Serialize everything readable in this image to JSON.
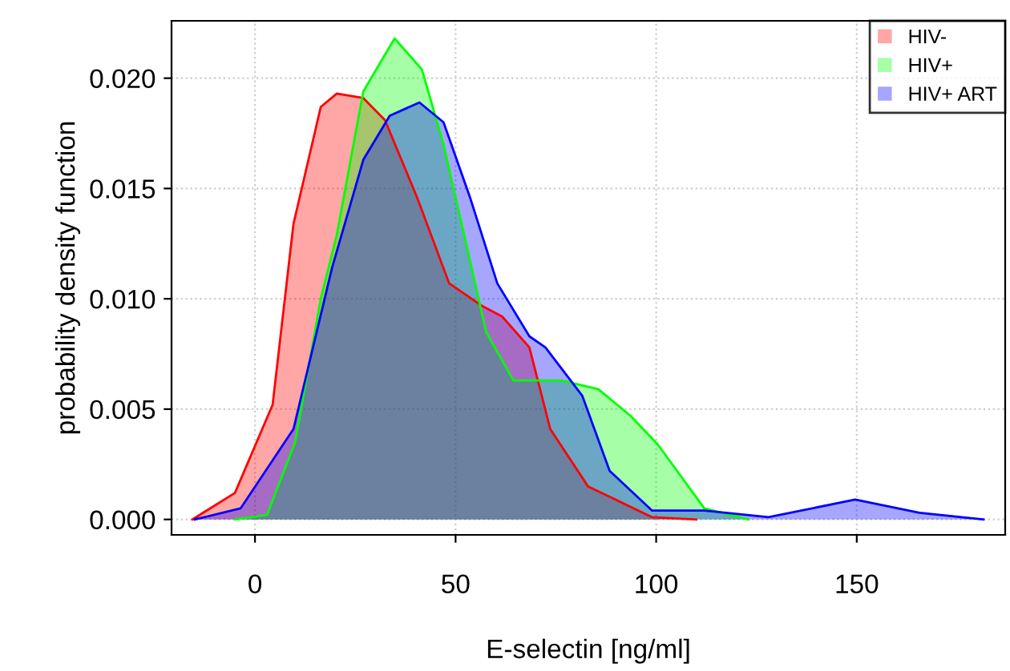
{
  "chart_data": {
    "type": "area",
    "xlabel": "E-selectin [ng/ml]",
    "ylabel": "probability density function",
    "xlim": [
      -20.8,
      187
    ],
    "ylim": [
      -0.0007,
      0.0226
    ],
    "xticks": [
      0,
      50,
      100,
      150
    ],
    "yticks": [
      {
        "value": 0,
        "label": "0.000"
      },
      {
        "value": 0.005,
        "label": "0.005"
      },
      {
        "value": 0.01,
        "label": "0.010"
      },
      {
        "value": 0.015,
        "label": "0.015"
      },
      {
        "value": 0.02,
        "label": "0.020"
      }
    ],
    "grid": true,
    "legend": "top right",
    "series": [
      {
        "name": "HIV-",
        "color": "#ff0000",
        "x": [
          -15.6,
          -5,
          4.4,
          9.6,
          16.4,
          20.4,
          27,
          32.4,
          40.4,
          48.4,
          56.4,
          61.6,
          68.4,
          73.6,
          83,
          99,
          110
        ],
        "values": [
          0,
          0.0012,
          0.0052,
          0.0134,
          0.0187,
          0.0193,
          0.0191,
          0.0181,
          0.0146,
          0.0107,
          0.0097,
          0.0092,
          0.0078,
          0.0041,
          0.0015,
          0.0001,
          0
        ]
      },
      {
        "name": "HIV+",
        "color": "#00ff00",
        "x": [
          -5,
          3,
          10,
          16.4,
          20.4,
          27,
          34.8,
          41.6,
          47,
          52.4,
          57.6,
          64.4,
          76.4,
          85.6,
          93.6,
          100.4,
          112,
          123
        ],
        "values": [
          0,
          0.0002,
          0.0035,
          0.01,
          0.0129,
          0.0194,
          0.0218,
          0.0204,
          0.017,
          0.0127,
          0.0085,
          0.0063,
          0.0063,
          0.0059,
          0.0047,
          0.0034,
          0.0005,
          0
        ]
      },
      {
        "name": "HIV+ ART",
        "color": "#0000ff",
        "x": [
          -15,
          -3.6,
          9.6,
          19.2,
          27,
          33.6,
          41,
          47,
          53.6,
          60.4,
          68.4,
          72.4,
          81.6,
          88.4,
          99,
          112,
          128,
          149.6,
          165.6,
          181.6
        ],
        "values": [
          0,
          0.0005,
          0.0041,
          0.0114,
          0.0163,
          0.0183,
          0.0189,
          0.018,
          0.0146,
          0.0107,
          0.0083,
          0.0078,
          0.0056,
          0.0022,
          0.0004,
          0.0004,
          0.0001,
          0.0009,
          0.0003,
          0
        ]
      }
    ]
  }
}
